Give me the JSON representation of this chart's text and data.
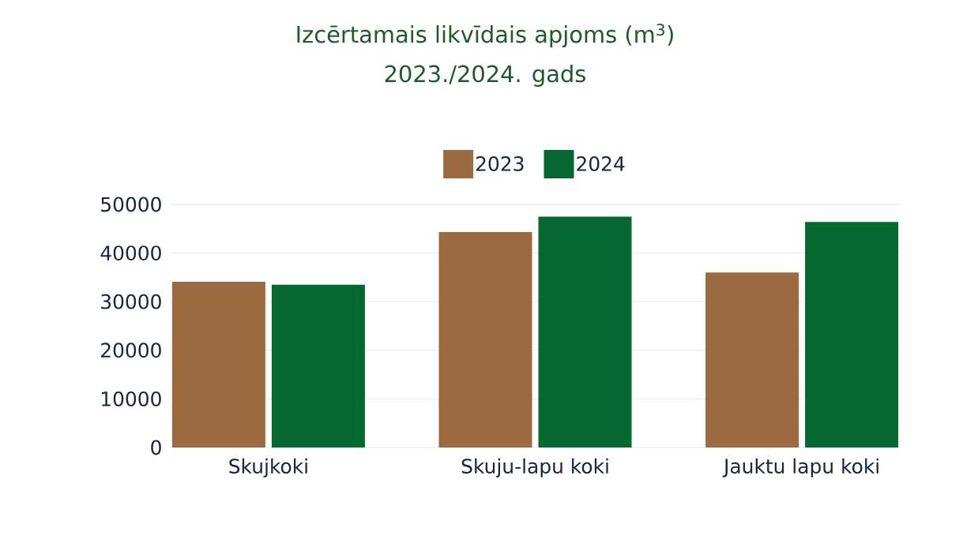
{
  "chart_data": {
    "type": "bar",
    "title": "Izcērtamais likvīdais apjoms (m$^{3}$)",
    "subtitle": "2023./2024. gads",
    "categories": [
      "Skujkoki",
      "Skuju-lapu koki",
      "Jauktu lapu koki"
    ],
    "series": [
      {
        "name": "2023",
        "color": "#9b6a40",
        "values": [
          34100,
          44300,
          36000
        ]
      },
      {
        "name": "2024",
        "color": "#05692f",
        "values": [
          33500,
          47500,
          46400
        ]
      }
    ],
    "ylim": [
      0,
      50000
    ],
    "yticks": [
      0,
      10000,
      20000,
      30000,
      40000,
      50000
    ],
    "grid": "y",
    "legend": "top"
  }
}
